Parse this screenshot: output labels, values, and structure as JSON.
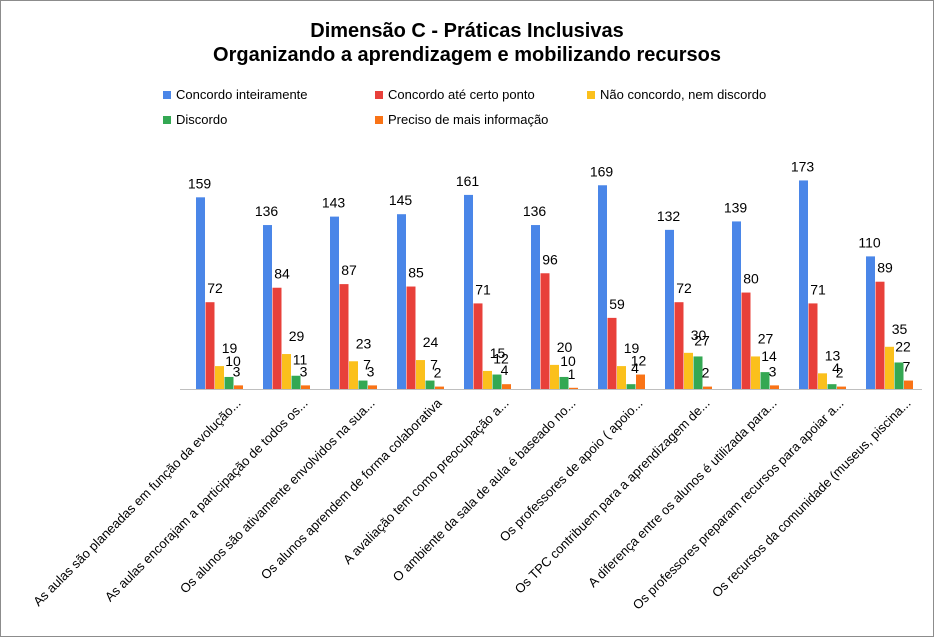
{
  "chart_data": {
    "type": "bar",
    "title": "Dimensão C - Práticas Inclusivas",
    "subtitle": "Organizando a aprendizagem e mobilizando recursos",
    "categories": [
      "As aulas são planeadas em função da evolução...",
      "As aulas encorajam a participação de todos os...",
      "Os alunos são ativamente envolvidos na sua...",
      "Os alunos aprendem de forma colaborativa",
      "A avaliação tem como preocupação a...",
      "O ambiente da sala de aula é baseado no...",
      "Os professores de apoio ( apoio...",
      "Os TPC contribuem para a aprendizagem de...",
      "A diferença entre os alunos é utilizada para...",
      "Os professores preparam recursos para apoiar a...",
      "Os recursos da comunidade (museus, piscina..."
    ],
    "series": [
      {
        "name": "Concordo inteiramente",
        "color": "#4a86e8",
        "values": [
          159,
          136,
          143,
          145,
          161,
          136,
          169,
          132,
          139,
          173,
          110
        ]
      },
      {
        "name": "Concordo até certo ponto",
        "color": "#e8403a",
        "values": [
          72,
          84,
          87,
          85,
          71,
          96,
          59,
          72,
          80,
          71,
          89
        ]
      },
      {
        "name": "Não concordo, nem discordo",
        "color": "#fbc01c",
        "values": [
          19,
          29,
          23,
          24,
          15,
          20,
          19,
          30,
          27,
          13,
          35
        ]
      },
      {
        "name": "Discordo",
        "color": "#34a853",
        "values": [
          10,
          11,
          7,
          7,
          12,
          10,
          4,
          27,
          14,
          4,
          22
        ]
      },
      {
        "name": "Preciso de mais informação",
        "color": "#f97316",
        "values": [
          3,
          3,
          3,
          2,
          4,
          1,
          12,
          2,
          3,
          2,
          7
        ]
      }
    ],
    "ylim": [
      0,
      180
    ],
    "grid": false,
    "legend_position": "top"
  }
}
